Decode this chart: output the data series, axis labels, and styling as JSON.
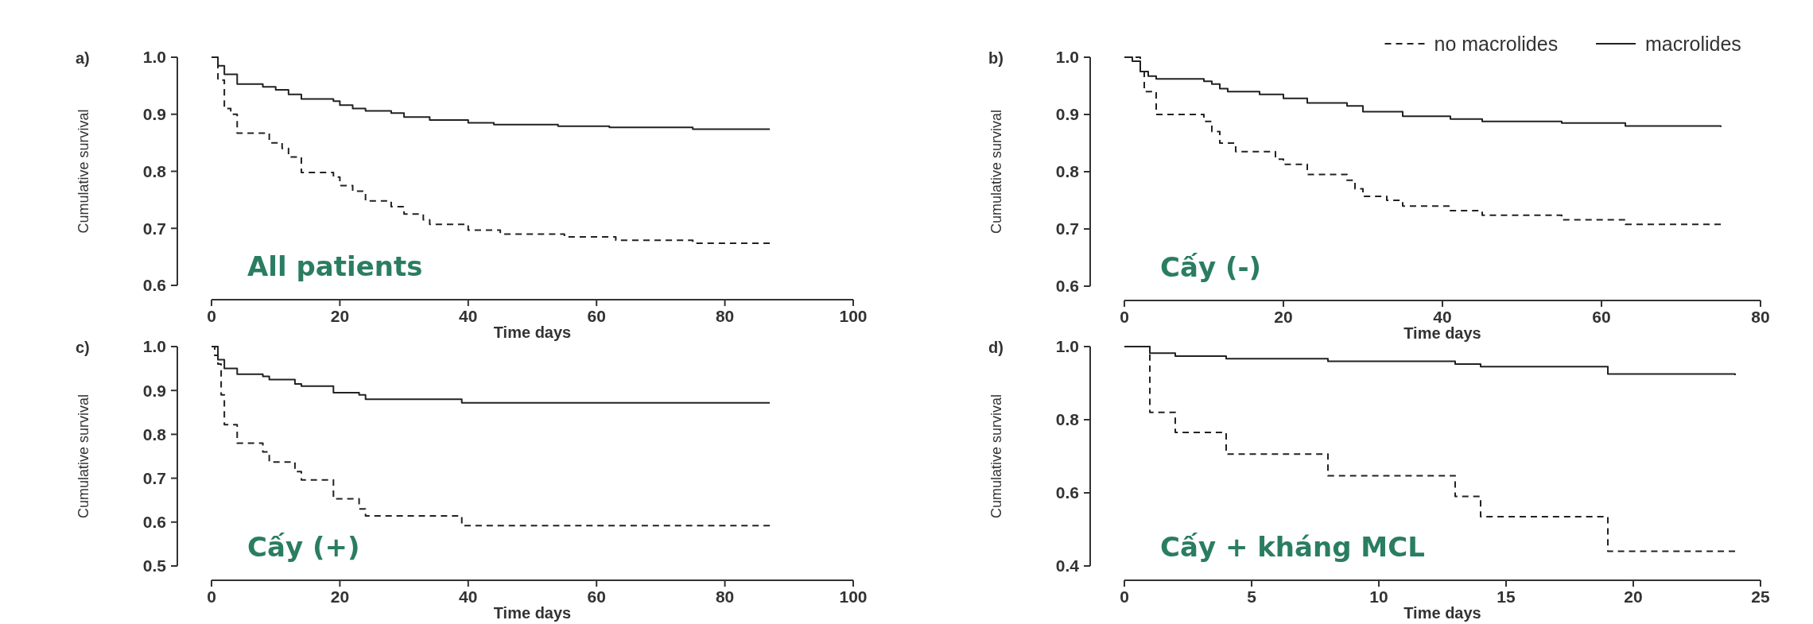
{
  "chart_data": [
    {
      "type": "step",
      "title": "a)",
      "xlabel": "Time days",
      "ylabel": "Cumulative survival",
      "annotations": [
        "All patients"
      ],
      "xlim": [
        0,
        100
      ],
      "ylim": [
        0.6,
        1.0
      ],
      "xticks": [
        0,
        20,
        40,
        60,
        80,
        100
      ],
      "yticks": [
        {
          "value": 0.6,
          "label": "0.6"
        },
        {
          "value": 0.7,
          "label": "0.7"
        },
        {
          "value": 0.8,
          "label": "0.8"
        },
        {
          "value": 0.9,
          "label": "0.9"
        },
        {
          "value": 1.0,
          "label": "1.0"
        }
      ],
      "series": [
        {
          "color": "#222222",
          "line_style": "solid",
          "x": [
            0,
            1,
            2,
            4,
            8,
            10,
            12,
            14,
            19,
            20,
            22,
            24,
            28,
            30,
            34,
            40,
            44,
            54,
            62,
            75,
            87
          ],
          "values": [
            1.0,
            0.985,
            0.97,
            0.953,
            0.948,
            0.943,
            0.935,
            0.927,
            0.923,
            0.916,
            0.91,
            0.906,
            0.902,
            0.895,
            0.89,
            0.885,
            0.882,
            0.879,
            0.877,
            0.874,
            0.874
          ]
        },
        {
          "color": "#222222",
          "line_style": "dashed",
          "x": [
            0,
            1,
            2,
            3,
            4,
            9,
            11,
            12,
            14,
            19,
            20,
            22,
            24,
            28,
            30,
            33,
            34,
            40,
            45,
            55,
            63,
            75,
            87
          ],
          "values": [
            1.0,
            0.96,
            0.91,
            0.9,
            0.867,
            0.85,
            0.84,
            0.825,
            0.798,
            0.79,
            0.775,
            0.765,
            0.748,
            0.738,
            0.725,
            0.715,
            0.707,
            0.697,
            0.69,
            0.685,
            0.679,
            0.674,
            0.674
          ]
        }
      ]
    },
    {
      "type": "step",
      "title": "b)",
      "xlabel": "Time days",
      "ylabel": "Cumulative survival",
      "annotations": [
        "Cấy (-)"
      ],
      "legend": "top right",
      "xlim": [
        0,
        80
      ],
      "ylim": [
        0.6,
        1.0
      ],
      "xticks": [
        0,
        20,
        40,
        60,
        80
      ],
      "yticks": [
        {
          "value": 0.6,
          "label": "0.6"
        },
        {
          "value": 0.7,
          "label": "0.7"
        },
        {
          "value": 0.8,
          "label": "0.8"
        },
        {
          "value": 0.9,
          "label": "0.9"
        },
        {
          "value": 1.0,
          "label": "1.0"
        }
      ],
      "series": [
        {
          "name": "no macrolides",
          "color": "#222222",
          "line_style": "dashed",
          "x": [
            0,
            2,
            2.5,
            4,
            10,
            11,
            12,
            14,
            19,
            20,
            23,
            28,
            29,
            30,
            33,
            35,
            41,
            45,
            55,
            63,
            75
          ],
          "values": [
            1.0,
            0.975,
            0.94,
            0.9,
            0.888,
            0.87,
            0.85,
            0.835,
            0.822,
            0.813,
            0.795,
            0.785,
            0.77,
            0.757,
            0.75,
            0.74,
            0.732,
            0.724,
            0.716,
            0.708,
            0.708
          ]
        },
        {
          "name": "macrolides",
          "color": "#222222",
          "line_style": "solid",
          "x": [
            0,
            1,
            2,
            3,
            4,
            10,
            11,
            12,
            13,
            17,
            20,
            23,
            28,
            30,
            35,
            41,
            45,
            55,
            63,
            75
          ],
          "values": [
            1.0,
            0.993,
            0.975,
            0.967,
            0.962,
            0.958,
            0.953,
            0.945,
            0.94,
            0.935,
            0.928,
            0.92,
            0.915,
            0.905,
            0.897,
            0.892,
            0.888,
            0.885,
            0.88,
            0.878
          ]
        }
      ]
    },
    {
      "type": "step",
      "title": "c)",
      "xlabel": "Time days",
      "ylabel": "Cumulative survival",
      "annotations": [
        "Cấy (+)"
      ],
      "xlim": [
        0,
        100
      ],
      "ylim": [
        0.5,
        1.0
      ],
      "xticks": [
        0,
        20,
        40,
        60,
        80,
        100
      ],
      "yticks": [
        {
          "value": 0.5,
          "label": "0.5"
        },
        {
          "value": 0.6,
          "label": "0.6"
        },
        {
          "value": 0.7,
          "label": "0.7"
        },
        {
          "value": 0.8,
          "label": "0.8"
        },
        {
          "value": 0.9,
          "label": "0.9"
        },
        {
          "value": 1.0,
          "label": "1.0"
        }
      ],
      "series": [
        {
          "color": "#222222",
          "line_style": "solid",
          "x": [
            0,
            1,
            2,
            4,
            8,
            9,
            13,
            14,
            19,
            23,
            24,
            39,
            87
          ],
          "values": [
            1.0,
            0.97,
            0.95,
            0.937,
            0.932,
            0.925,
            0.915,
            0.91,
            0.895,
            0.89,
            0.88,
            0.872,
            0.872
          ]
        },
        {
          "color": "#222222",
          "line_style": "dashed",
          "x": [
            0,
            0.5,
            1,
            1.5,
            2,
            4,
            8,
            9,
            13,
            14,
            19,
            23,
            24,
            39,
            87
          ],
          "values": [
            1.0,
            0.98,
            0.96,
            0.89,
            0.822,
            0.78,
            0.76,
            0.737,
            0.715,
            0.696,
            0.653,
            0.63,
            0.614,
            0.592,
            0.592
          ]
        }
      ]
    },
    {
      "type": "step",
      "title": "d)",
      "xlabel": "Time days",
      "ylabel": "Cumulative survival",
      "annotations": [
        "Cấy + kháng MCL"
      ],
      "xlim": [
        0,
        25
      ],
      "ylim": [
        0.4,
        1.0
      ],
      "xticks": [
        0,
        5,
        10,
        15,
        20,
        25
      ],
      "yticks": [
        {
          "value": 0.4,
          "label": "0.4"
        },
        {
          "value": 0.6,
          "label": "0.6"
        },
        {
          "value": 0.8,
          "label": "0.8"
        },
        {
          "value": 1.0,
          "label": "1.0"
        }
      ],
      "series": [
        {
          "color": "#222222",
          "line_style": "solid",
          "x": [
            0,
            1,
            2,
            4,
            8,
            13,
            14,
            19,
            24
          ],
          "values": [
            1.0,
            0.982,
            0.974,
            0.967,
            0.96,
            0.952,
            0.945,
            0.925,
            0.922
          ]
        },
        {
          "color": "#222222",
          "line_style": "dashed",
          "x": [
            0,
            1,
            2,
            4,
            8,
            13,
            14,
            19,
            24
          ],
          "values": [
            1.0,
            0.82,
            0.765,
            0.706,
            0.647,
            0.59,
            0.535,
            0.44,
            0.44
          ]
        }
      ]
    }
  ]
}
